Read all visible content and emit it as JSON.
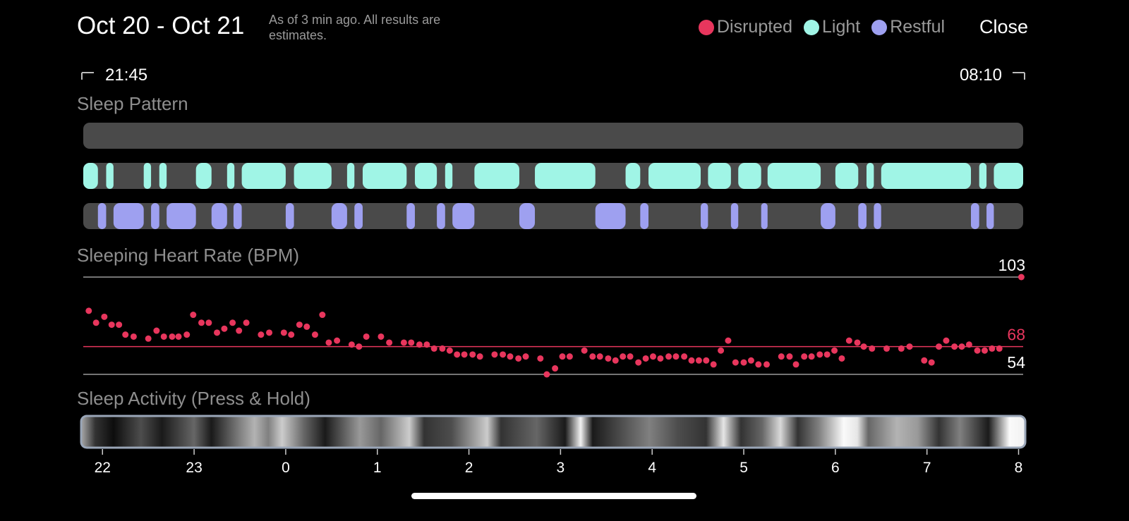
{
  "header": {
    "title": "Oct 20 - Oct 21",
    "subtitle": "As of 3 min ago. All results are estimates.",
    "close": "Close"
  },
  "time_range": {
    "start": "21:45",
    "end": "08:10"
  },
  "chart_data": [
    {
      "type": "timeline",
      "title": "Sleep Pattern",
      "xlim": [
        21.79,
        32.05
      ],
      "track_color": "#4a4a4a",
      "series": [
        {
          "name": "Disrupted",
          "color": "#e8365d",
          "segments": []
        },
        {
          "name": "Light",
          "color": "#a0f5e6",
          "segments": [
            {
              "start": 21.79,
              "end": 21.95
            },
            {
              "start": 22.04,
              "end": 22.12
            },
            {
              "start": 22.45,
              "end": 22.53
            },
            {
              "start": 22.62,
              "end": 22.7
            },
            {
              "start": 23.02,
              "end": 23.19
            },
            {
              "start": 23.36,
              "end": 23.44
            },
            {
              "start": 23.52,
              "end": 24.0
            },
            {
              "start": 24.09,
              "end": 24.5
            },
            {
              "start": 24.67,
              "end": 24.75
            },
            {
              "start": 24.84,
              "end": 25.32
            },
            {
              "start": 25.41,
              "end": 25.65
            },
            {
              "start": 25.74,
              "end": 25.82
            },
            {
              "start": 26.06,
              "end": 26.55
            },
            {
              "start": 26.72,
              "end": 27.38
            },
            {
              "start": 27.71,
              "end": 27.87
            },
            {
              "start": 27.96,
              "end": 28.53
            },
            {
              "start": 28.61,
              "end": 28.86
            },
            {
              "start": 28.94,
              "end": 29.19
            },
            {
              "start": 29.26,
              "end": 29.84
            },
            {
              "start": 30.0,
              "end": 30.25
            },
            {
              "start": 30.34,
              "end": 30.42
            },
            {
              "start": 30.5,
              "end": 31.48
            },
            {
              "start": 31.57,
              "end": 31.65
            },
            {
              "start": 31.73,
              "end": 32.05
            }
          ]
        },
        {
          "name": "Restful",
          "color": "#9ea0f0",
          "segments": [
            {
              "start": 21.95,
              "end": 22.04
            },
            {
              "start": 22.12,
              "end": 22.45
            },
            {
              "start": 22.53,
              "end": 22.62
            },
            {
              "start": 22.7,
              "end": 23.02
            },
            {
              "start": 23.19,
              "end": 23.36
            },
            {
              "start": 23.43,
              "end": 23.52
            },
            {
              "start": 24.0,
              "end": 24.09
            },
            {
              "start": 24.5,
              "end": 24.67
            },
            {
              "start": 24.75,
              "end": 24.84
            },
            {
              "start": 25.32,
              "end": 25.41
            },
            {
              "start": 25.65,
              "end": 25.74
            },
            {
              "start": 25.82,
              "end": 26.06
            },
            {
              "start": 26.55,
              "end": 26.72
            },
            {
              "start": 27.38,
              "end": 27.71
            },
            {
              "start": 27.87,
              "end": 27.96
            },
            {
              "start": 28.53,
              "end": 28.61
            },
            {
              "start": 28.86,
              "end": 28.94
            },
            {
              "start": 29.19,
              "end": 29.26
            },
            {
              "start": 29.84,
              "end": 30.0
            },
            {
              "start": 30.25,
              "end": 30.34
            },
            {
              "start": 30.42,
              "end": 30.5
            },
            {
              "start": 31.48,
              "end": 31.57
            },
            {
              "start": 31.65,
              "end": 31.73
            }
          ]
        }
      ]
    },
    {
      "type": "scatter",
      "title": "Sleeping Heart Rate (BPM)",
      "color": "#e8365d",
      "xlim": [
        21.79,
        32.05
      ],
      "ylim": [
        54,
        103
      ],
      "yticks": [
        54,
        68,
        103
      ],
      "ytick_colors": [
        "#9a9a9a",
        "#e8365d",
        "#9a9a9a"
      ],
      "ytick_label_colors": [
        "#ffffff",
        "#e8365d",
        "#ffffff"
      ],
      "x": [
        21.85,
        21.93,
        22.02,
        22.1,
        22.18,
        22.25,
        22.34,
        22.5,
        22.59,
        22.67,
        22.76,
        22.83,
        22.92,
        22.99,
        23.08,
        23.16,
        23.25,
        23.33,
        23.42,
        23.49,
        23.57,
        23.73,
        23.82,
        23.98,
        24.06,
        24.15,
        24.23,
        24.32,
        24.4,
        24.47,
        24.56,
        24.72,
        24.8,
        24.88,
        25.04,
        25.13,
        25.29,
        25.37,
        25.46,
        25.54,
        25.62,
        25.71,
        25.79,
        25.87,
        25.95,
        26.04,
        26.12,
        26.28,
        26.37,
        26.45,
        26.54,
        26.62,
        26.78,
        26.85,
        26.94,
        27.02,
        27.1,
        27.26,
        27.35,
        27.43,
        27.52,
        27.6,
        27.68,
        27.76,
        27.85,
        27.93,
        28.01,
        28.09,
        28.18,
        28.26,
        28.35,
        28.43,
        28.51,
        28.59,
        28.67,
        28.75,
        28.83,
        28.91,
        29.0,
        29.08,
        29.16,
        29.25,
        29.41,
        29.5,
        29.57,
        29.66,
        29.74,
        29.83,
        29.91,
        29.99,
        30.07,
        30.15,
        30.24,
        30.31,
        30.4,
        30.56,
        30.72,
        30.81,
        30.97,
        31.05,
        31.13,
        31.21,
        31.3,
        31.38,
        31.46,
        31.55,
        31.63,
        31.71,
        31.79,
        32.03
      ],
      "values": [
        86,
        80,
        83,
        79,
        79,
        74,
        73,
        72,
        76,
        73,
        73,
        73,
        74,
        84,
        80,
        80,
        75,
        77,
        80,
        76,
        80,
        74,
        75,
        75,
        74,
        79,
        78,
        74,
        84,
        70,
        71,
        69,
        68,
        73,
        73,
        70,
        70,
        70,
        69,
        69,
        67,
        67,
        66,
        64,
        64,
        64,
        63,
        64,
        64,
        63,
        62,
        63,
        62,
        54,
        57,
        63,
        63,
        66,
        63,
        63,
        62,
        61,
        63,
        63,
        60,
        62,
        63,
        62,
        63,
        63,
        63,
        61,
        61,
        61,
        59,
        66,
        71,
        60,
        60,
        61,
        59,
        59,
        63,
        63,
        59,
        63,
        63,
        64,
        64,
        66,
        62,
        71,
        70,
        68,
        67,
        67,
        67,
        68,
        61,
        60,
        68,
        71,
        68,
        68,
        69,
        66,
        66,
        67,
        67,
        103
      ]
    },
    {
      "type": "heatmap",
      "title": "Sleep Activity (Press & Hold)",
      "xlim": [
        21.79,
        32.05
      ],
      "border_color": "#9aa6b8",
      "x": [
        21.79,
        21.92,
        22.12,
        22.42,
        22.65,
        23.0,
        23.19,
        23.5,
        23.66,
        23.81,
        23.96,
        24.2,
        24.43,
        24.81,
        25.04,
        25.35,
        25.51,
        25.81,
        26.2,
        26.35,
        26.74,
        27.05,
        27.22,
        27.35,
        27.66,
        27.97,
        28.28,
        28.59,
        28.78,
        28.97,
        29.2,
        29.4,
        29.59,
        29.82,
        30.09,
        30.24,
        30.36,
        30.67,
        30.9,
        31.13,
        31.36,
        31.67,
        31.9,
        32.05
      ],
      "values": [
        60,
        20,
        5,
        30,
        10,
        40,
        10,
        50,
        70,
        50,
        80,
        40,
        10,
        60,
        40,
        80,
        20,
        30,
        80,
        20,
        40,
        10,
        95,
        10,
        30,
        50,
        30,
        20,
        90,
        20,
        40,
        85,
        20,
        50,
        98,
        90,
        40,
        70,
        60,
        20,
        50,
        10,
        98,
        95
      ],
      "xticks": [
        22,
        23,
        {
          "value": 24,
          "label": "0"
        },
        {
          "value": 25,
          "label": "1"
        },
        {
          "value": 26,
          "label": "2"
        },
        {
          "value": 27,
          "label": "3"
        },
        {
          "value": 28,
          "label": "4"
        },
        {
          "value": 29,
          "label": "5"
        },
        {
          "value": 30,
          "label": "6"
        },
        {
          "value": 31,
          "label": "7"
        },
        {
          "value": 32,
          "label": "8"
        }
      ]
    }
  ]
}
